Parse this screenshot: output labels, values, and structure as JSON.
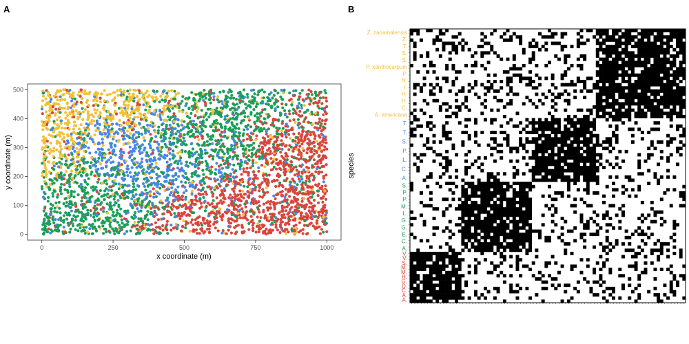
{
  "figure": {
    "panels": [
      {
        "label": "A"
      },
      {
        "label": "B"
      }
    ]
  },
  "colors": {
    "yellow": "#f2c13b",
    "blue": "#4a86e8",
    "green": "#1a9e5a",
    "red": "#d9453b",
    "tick": "#4d4d4d",
    "matrix_fill": "#000000",
    "matrix_empty": "#ffffff"
  },
  "chart_data": [
    {
      "panel": "A",
      "type": "scatter",
      "xlabel": "x coordinate (m)",
      "ylabel": "y coordinate (m)",
      "xlim": [
        -50,
        1050
      ],
      "ylim": [
        -20,
        520
      ],
      "xticks": [
        "0",
        "250",
        "500",
        "750",
        "1000"
      ],
      "yticks": [
        "0",
        "100",
        "200",
        "300",
        "400",
        "500"
      ],
      "grid": false,
      "point_cloud": {
        "description_of_groups": [
          "yellow",
          "blue",
          "green",
          "red"
        ],
        "x_range": [
          0,
          1000
        ],
        "y_range": [
          0,
          500
        ],
        "cluster_centers": [
          {
            "group": "blue",
            "x": 280,
            "y": 300
          },
          {
            "group": "blue",
            "x": 420,
            "y": 260
          },
          {
            "group": "green",
            "x": 680,
            "y": 430
          },
          {
            "group": "green",
            "x": 520,
            "y": 300
          },
          {
            "group": "green",
            "x": 180,
            "y": 160
          },
          {
            "group": "red",
            "x": 900,
            "y": 300
          },
          {
            "group": "red",
            "x": 650,
            "y": 60
          },
          {
            "group": "yellow",
            "x": 50,
            "y": 320
          },
          {
            "group": "yellow",
            "x": 260,
            "y": 440
          }
        ]
      }
    },
    {
      "panel": "B",
      "type": "heatmap",
      "ylabel": "species",
      "blocks": [
        {
          "group": "red",
          "order": 0,
          "size": 16
        },
        {
          "group": "green",
          "order": 1,
          "size": 22
        },
        {
          "group": "blue",
          "order": 2,
          "size": 20
        },
        {
          "group": "yellow",
          "order": 3,
          "size": 28
        }
      ],
      "species_labels": {
        "yellow": [
          "Z. zanamalensis",
          "Z. ",
          "T. ",
          "S. ",
          "S. ",
          "P. xanthocarpum",
          "P. ",
          "N. ",
          "I. ",
          "H. ",
          "H. ",
          "C. ",
          "A. americana"
        ],
        "blue": [
          "T. ",
          "T. ",
          "S. ",
          "P. ",
          "L. ",
          "C. ",
          "A. "
        ],
        "green": [
          "S. ",
          "P. ",
          "P. ",
          "M. ",
          "L. ",
          "G. ",
          "G. ",
          "E. ",
          "C. ",
          "A. "
        ],
        "red": [
          "V. ",
          "V. ",
          "S. ",
          "M. ",
          "M. ",
          "H. ",
          "G. ",
          "D. ",
          "C. ",
          "A. ",
          "A. "
        ]
      }
    }
  ]
}
